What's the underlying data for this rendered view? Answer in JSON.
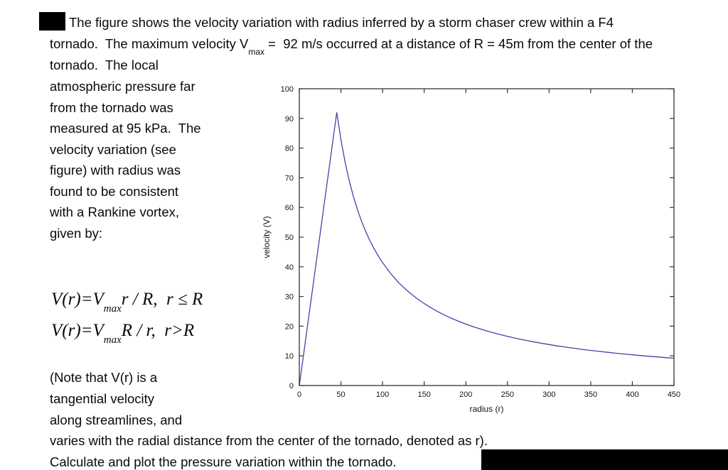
{
  "paragraph_top": {
    "line1": "The figure shows the velocity variation with radius inferred by a storm chaser crew within a F4",
    "line2_pre": "tornado.  The maximum velocity V",
    "line2_sub": "max",
    "line2_post": " =  92 m/s occurred at a distance of R = 45m from the center of the",
    "line3": "tornado.  The local"
  },
  "left_column": {
    "lines": [
      "atmospheric pressure far",
      "from the tornado was",
      "measured at 95 kPa.  The",
      "velocity variation (see",
      "figure) with radius was",
      "found to be consistent",
      "with a Rankine vortex,",
      "given by:"
    ]
  },
  "equations": {
    "eq1_pre": "V(r)=V",
    "eq1_sub": "max",
    "eq1_post": "r / R,  r ≤ R",
    "eq2_pre": "V(r)=V",
    "eq2_sub": "max",
    "eq2_post": "R / r,  r>R"
  },
  "paragraph_bottom": {
    "line1": "(Note that V(r) is a",
    "line2": "tangential velocity",
    "line3": "along streamlines, and",
    "line4": "varies with the radial distance from the center of the tornado, denoted as r).",
    "line5": "Calculate and plot the pressure variation within the tornado."
  },
  "chart_data": {
    "type": "line",
    "title": "",
    "xlabel": "radius (r)",
    "ylabel": "velocity (V)",
    "xlim": [
      0,
      450
    ],
    "ylim": [
      0,
      100
    ],
    "x_ticks": [
      0,
      50,
      100,
      150,
      200,
      250,
      300,
      350,
      400,
      450
    ],
    "y_ticks": [
      0,
      10,
      20,
      30,
      40,
      50,
      60,
      70,
      80,
      90,
      100
    ],
    "grid": false,
    "legend": "none",
    "line_color": "#4343a8",
    "box_color": "#333333",
    "model": {
      "name": "Rankine vortex",
      "vmax": 92,
      "R": 45
    },
    "series": [
      {
        "name": "V(r)",
        "x": [
          0,
          5,
          10,
          15,
          20,
          25,
          30,
          35,
          40,
          45,
          50,
          55,
          60,
          65,
          70,
          75,
          80,
          85,
          90,
          95,
          100,
          110,
          120,
          130,
          140,
          150,
          160,
          170,
          180,
          190,
          200,
          210,
          220,
          230,
          240,
          250,
          260,
          270,
          280,
          290,
          300,
          310,
          320,
          330,
          340,
          350,
          360,
          370,
          380,
          390,
          400,
          410,
          420,
          430,
          440,
          450
        ],
        "y": [
          0,
          10.22,
          20.44,
          30.67,
          40.89,
          51.11,
          61.33,
          71.56,
          81.78,
          92,
          82.8,
          75.27,
          69,
          63.69,
          59.14,
          55.2,
          51.75,
          48.71,
          46,
          43.58,
          41.4,
          37.64,
          34.5,
          31.85,
          29.57,
          27.6,
          25.88,
          24.35,
          23,
          21.79,
          20.7,
          19.71,
          18.82,
          18,
          17.25,
          16.56,
          15.92,
          15.33,
          14.79,
          14.28,
          13.8,
          13.35,
          12.94,
          12.55,
          12.18,
          11.83,
          11.5,
          11.19,
          10.89,
          10.62,
          10.35,
          10.1,
          9.86,
          9.63,
          9.41,
          9.2
        ]
      }
    ]
  }
}
